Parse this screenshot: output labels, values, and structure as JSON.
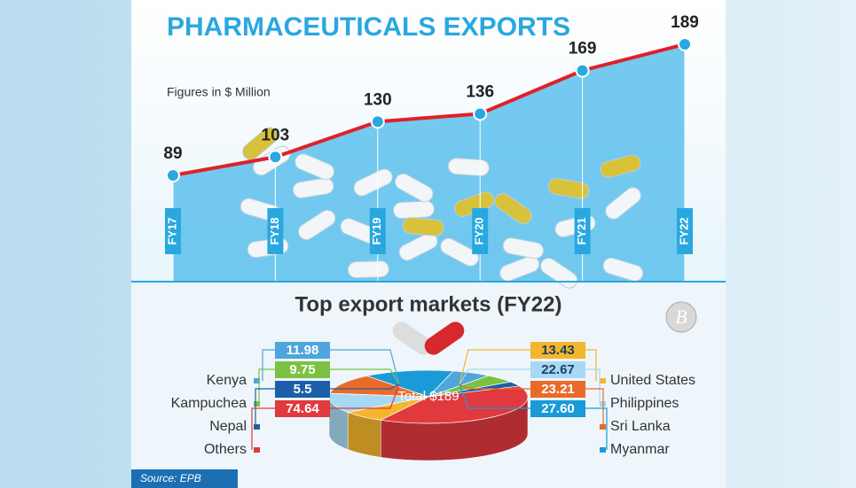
{
  "chart_data": [
    {
      "type": "line",
      "title": "PHARMACEUTICALS EXPORTS",
      "subtitle": "Figures in $ Million",
      "categories": [
        "FY17",
        "FY18",
        "FY19",
        "FY20",
        "FY21",
        "FY22"
      ],
      "values": [
        89,
        103,
        130,
        136,
        169,
        189
      ],
      "color": "#e0202a",
      "marker_color": "#29a8e0",
      "area_color": "#5cc0ec"
    },
    {
      "type": "pie",
      "title": "Top export markets (FY22)",
      "center_label": "Total $189",
      "categories": [
        "Kenya",
        "Kampuchea",
        "Nepal",
        "Others",
        "United States",
        "Philippines",
        "Sri Lanka",
        "Myanmar"
      ],
      "values": [
        11.98,
        9.75,
        5.5,
        74.64,
        13.43,
        22.67,
        23.21,
        27.6
      ],
      "value_labels": [
        "11.98",
        "9.75",
        "5.5",
        "74.64",
        "13.43",
        "22.67",
        "23.21",
        "27.60"
      ],
      "colors": [
        "#4fa6dc",
        "#7cc242",
        "#1d5ea8",
        "#e0393e",
        "#f4b62c",
        "#a8d9f2",
        "#ea6a28",
        "#1a9bd7"
      ]
    }
  ],
  "source": "Source: EPB"
}
